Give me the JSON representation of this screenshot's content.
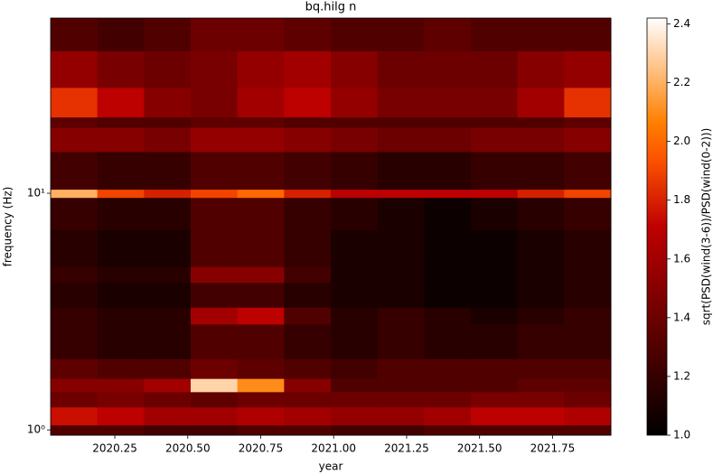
{
  "chart_data": {
    "type": "heatmap",
    "title": "bq.hilg n",
    "x_label": "year",
    "y_label": "frequency (Hz)",
    "colorbar_label": "sqrt(PSD(wind(3-6))/PSD(wind(0-2)))",
    "colormap": "gist_heat",
    "y_scale": "log",
    "xlim": [
      2020.03,
      2021.95
    ],
    "ylim": [
      0.95,
      55
    ],
    "xticks": [
      2020.25,
      {
        "value": 2020.5,
        "label": "2020.50"
      },
      2020.75,
      {
        "value": 2021,
        "label": "2021.00"
      },
      2021.25,
      {
        "value": 2021.5,
        "label": "2021.50"
      },
      2021.75
    ],
    "yticks": [
      {
        "value": 1,
        "label": "10⁰"
      },
      {
        "value": 10,
        "label": "10¹"
      }
    ],
    "clim": [
      1.0,
      2.42
    ],
    "cticks": [
      {
        "value": 1,
        "label": "1.0"
      },
      1.2,
      1.4,
      1.6,
      1.8,
      {
        "value": 2,
        "label": "2.0"
      },
      2.2,
      2.4
    ],
    "xbins": [
      2020.03,
      2020.19,
      2020.35,
      2020.51,
      2020.67,
      2020.83,
      2020.99,
      2021.15,
      2021.31,
      2021.47,
      2021.63,
      2021.79,
      2021.95
    ],
    "ybins": [
      0.95,
      1.05,
      1.25,
      1.45,
      1.65,
      2.0,
      2.8,
      3.3,
      4.2,
      4.9,
      7,
      9.6,
      10.4,
      15,
      19,
      21,
      28,
      40,
      55
    ],
    "z": [
      [
        1.3,
        1.3,
        1.25,
        1.25,
        1.3,
        1.3,
        1.25,
        1.25,
        1.3,
        1.3,
        1.3,
        1.3
      ],
      [
        1.75,
        1.7,
        1.6,
        1.6,
        1.65,
        1.6,
        1.55,
        1.55,
        1.6,
        1.7,
        1.7,
        1.65
      ],
      [
        1.4,
        1.45,
        1.4,
        1.35,
        1.4,
        1.4,
        1.4,
        1.4,
        1.4,
        1.45,
        1.45,
        1.4
      ],
      [
        1.5,
        1.5,
        1.6,
        2.3,
        2.1,
        1.5,
        1.3,
        1.3,
        1.3,
        1.3,
        1.35,
        1.35
      ],
      [
        1.35,
        1.3,
        1.3,
        1.4,
        1.35,
        1.3,
        1.25,
        1.3,
        1.3,
        1.3,
        1.3,
        1.3
      ],
      [
        1.2,
        1.15,
        1.15,
        1.3,
        1.3,
        1.2,
        1.15,
        1.2,
        1.15,
        1.15,
        1.2,
        1.2
      ],
      [
        1.2,
        1.15,
        1.15,
        1.6,
        1.7,
        1.3,
        1.15,
        1.2,
        1.15,
        1.1,
        1.15,
        1.2
      ],
      [
        1.15,
        1.1,
        1.1,
        1.25,
        1.25,
        1.15,
        1.1,
        1.1,
        1.05,
        1.05,
        1.1,
        1.15
      ],
      [
        1.2,
        1.15,
        1.15,
        1.5,
        1.5,
        1.25,
        1.1,
        1.1,
        1.05,
        1.05,
        1.1,
        1.15
      ],
      [
        1.15,
        1.1,
        1.1,
        1.3,
        1.3,
        1.2,
        1.1,
        1.1,
        1.05,
        1.05,
        1.1,
        1.15
      ],
      [
        1.2,
        1.15,
        1.15,
        1.3,
        1.3,
        1.2,
        1.15,
        1.1,
        1.05,
        1.1,
        1.15,
        1.2
      ],
      [
        2.2,
        1.9,
        1.8,
        1.9,
        2.0,
        1.8,
        1.7,
        1.7,
        1.7,
        1.7,
        1.8,
        1.9
      ],
      [
        1.25,
        1.2,
        1.2,
        1.3,
        1.3,
        1.25,
        1.2,
        1.15,
        1.15,
        1.2,
        1.2,
        1.25
      ],
      [
        1.5,
        1.5,
        1.45,
        1.55,
        1.55,
        1.5,
        1.45,
        1.4,
        1.4,
        1.45,
        1.45,
        1.5
      ],
      [
        1.35,
        1.3,
        1.3,
        1.35,
        1.35,
        1.3,
        1.3,
        1.3,
        1.3,
        1.3,
        1.3,
        1.35
      ],
      [
        1.85,
        1.7,
        1.5,
        1.45,
        1.6,
        1.7,
        1.55,
        1.45,
        1.45,
        1.45,
        1.6,
        1.85
      ],
      [
        1.55,
        1.45,
        1.4,
        1.45,
        1.55,
        1.6,
        1.5,
        1.4,
        1.4,
        1.4,
        1.5,
        1.55
      ],
      [
        1.3,
        1.25,
        1.3,
        1.4,
        1.4,
        1.35,
        1.3,
        1.3,
        1.35,
        1.3,
        1.3,
        1.3
      ]
    ]
  }
}
